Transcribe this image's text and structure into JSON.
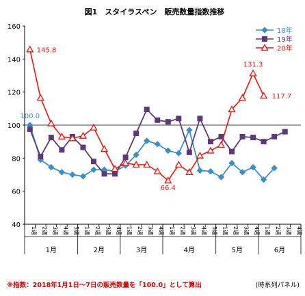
{
  "chart_data": {
    "type": "line",
    "title": "図1　スタイラスペン　販売数量指数推移",
    "ylim": [
      40,
      160
    ],
    "yticks": [
      40,
      60,
      80,
      100,
      120,
      140,
      160
    ],
    "reference_line": 100,
    "grid": false,
    "legend_position": "top-right",
    "week_labels": [
      "1週",
      "2週",
      "3週",
      "4週",
      "5週",
      "1週",
      "2週",
      "3週",
      "4週",
      "1週",
      "2週",
      "3週",
      "4週",
      "1週",
      "2週",
      "3週",
      "4週",
      "5週",
      "1週",
      "2週",
      "3週",
      "4週",
      "1週",
      "2週",
      "3週",
      "4週"
    ],
    "months": [
      {
        "label": "1月",
        "start": 0,
        "count": 5
      },
      {
        "label": "2月",
        "start": 5,
        "count": 4
      },
      {
        "label": "3月",
        "start": 9,
        "count": 4
      },
      {
        "label": "4月",
        "start": 13,
        "count": 5
      },
      {
        "label": "5月",
        "start": 18,
        "count": 4
      },
      {
        "label": "6月",
        "start": 22,
        "count": 4
      }
    ],
    "series": [
      {
        "name": "18年",
        "color": "#3a8fc9",
        "marker": "diamond",
        "values": [
          100.0,
          79.0,
          74.5,
          71.5,
          70.0,
          69.0,
          73.0,
          73.0,
          72.0,
          75.5,
          82.0,
          90.5,
          88.5,
          84.5,
          83.0,
          97.0,
          72.5,
          72.0,
          68.5,
          77.0,
          71.5,
          74.5,
          67.0,
          74.0
        ]
      },
      {
        "name": "19年",
        "color": "#5c3a78",
        "marker": "square",
        "values": [
          97.5,
          81.0,
          92.5,
          85.0,
          93.0,
          86.5,
          78.0,
          70.5,
          70.5,
          80.5,
          95.0,
          109.5,
          103.0,
          102.0,
          104.0,
          83.5,
          104.0,
          90.0,
          93.0,
          84.0,
          93.0,
          92.5,
          90.0,
          93.0,
          96.0
        ]
      },
      {
        "name": "20年",
        "color": "#e8140c",
        "marker": "triangle",
        "values": [
          145.8,
          116.5,
          101.0,
          93.0,
          92.0,
          93.5,
          98.5,
          85.5,
          73.5,
          77.0,
          76.0,
          76.0,
          72.0,
          66.4,
          76.0,
          71.5,
          81.5,
          84.5,
          88.0,
          109.5,
          116.5,
          131.3,
          117.7
        ]
      }
    ],
    "annotations": [
      {
        "series": 0,
        "index": 0,
        "text": "100.0"
      },
      {
        "series": 2,
        "index": 0,
        "text": "145.8"
      },
      {
        "series": 2,
        "index": 13,
        "text": "66.4"
      },
      {
        "series": 2,
        "index": 21,
        "text": "131.3"
      },
      {
        "series": 2,
        "index": 22,
        "text": "117.7"
      }
    ]
  },
  "footnote": "※指数：2018年1月1日～7日の販売数量を「100.0」として算出",
  "panel_note": "(時系列パネル)"
}
